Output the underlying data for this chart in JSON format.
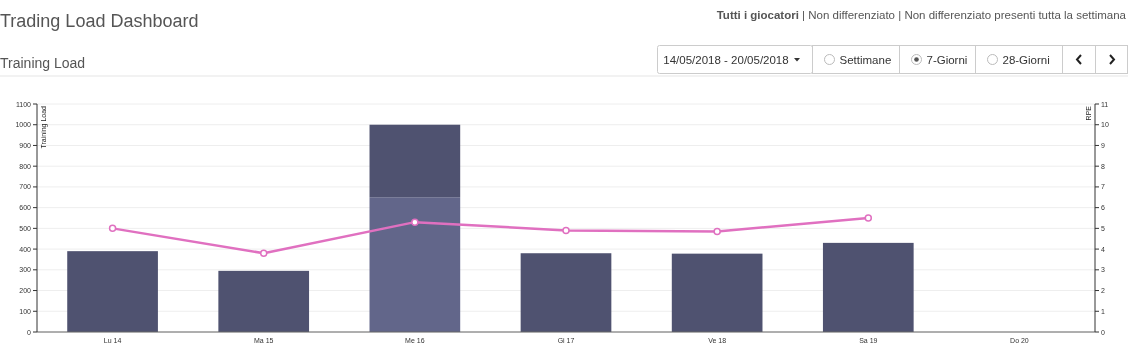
{
  "chart_data": {
    "type": "bar",
    "title": "Trading Load Dashboard",
    "subtitle": "Training Load",
    "ylabel": "Training Load",
    "y2label": "RPE",
    "annotations": [
      "Tutti i giocatori",
      "| Non differenziato | Non differenziato presenti tutta la settimana",
      "14/05/2018 - 20/05/2018",
      "Settimane",
      "7-Giorni",
      "28-Giorni"
    ],
    "categories": [
      "Lu 14",
      "Ma 15",
      "Me 16",
      "Gi 17",
      "Ve 18",
      "Sa 19",
      "Do 20"
    ],
    "stacked": true,
    "series": [
      {
        "color": "#62668a",
        "values": [
          null,
          null,
          650,
          null,
          null,
          null,
          null
        ]
      },
      {
        "color": "#4f5270",
        "values": [
          390,
          295,
          350,
          380,
          378,
          430,
          null
        ]
      },
      {
        "type": "line",
        "axis": "y2",
        "color": "#e070c0",
        "marker": "circle",
        "values": [
          5.0,
          3.8,
          5.3,
          4.9,
          4.85,
          5.5,
          null
        ]
      }
    ],
    "ylim": [
      0,
      1100
    ],
    "yticks": [
      0,
      100,
      200,
      300,
      400,
      500,
      600,
      700,
      800,
      900,
      1000,
      1100
    ],
    "y2lim": [
      0,
      11
    ],
    "y2ticks": [
      0,
      1,
      2,
      3,
      4,
      5,
      6,
      7,
      8,
      9,
      10,
      11
    ],
    "grid": "y"
  }
}
